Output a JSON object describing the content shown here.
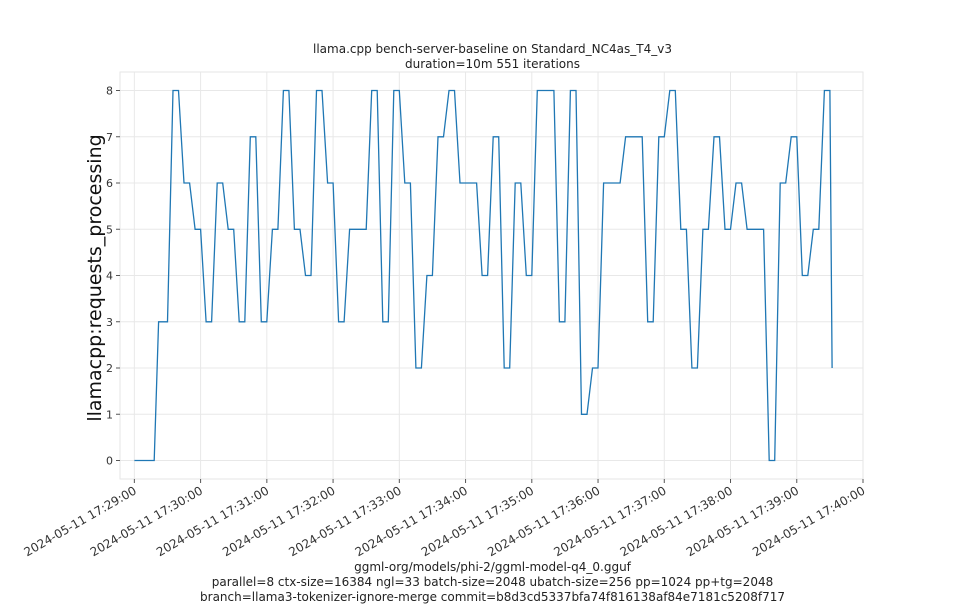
{
  "chart_data": {
    "type": "line",
    "title": "llama.cpp bench-server-baseline on Standard_NC4as_T4_v3",
    "subtitle": "duration=10m 551 iterations",
    "ylabel": "llamacpp:requests_processing",
    "xlabel_lines": [
      "ggml-org/models/phi-2/ggml-model-q4_0.gguf",
      "parallel=8 ctx-size=16384 ngl=33 batch-size=2048 ubatch-size=256 pp=1024 pp+tg=2048",
      "branch=llama3-tokenizer-ignore-merge commit=b8d3cd5337bfa74f816138af84e7181c5208f717"
    ],
    "ylim": [
      -0.4,
      8.4
    ],
    "yticks": [
      0,
      1,
      2,
      3,
      4,
      5,
      6,
      7,
      8
    ],
    "xlim": [
      "2024-05-11 17:28:47",
      "2024-05-11 17:40:00"
    ],
    "xticks": [
      "2024-05-11 17:29:00",
      "2024-05-11 17:30:00",
      "2024-05-11 17:31:00",
      "2024-05-11 17:32:00",
      "2024-05-11 17:33:00",
      "2024-05-11 17:34:00",
      "2024-05-11 17:35:00",
      "2024-05-11 17:36:00",
      "2024-05-11 17:37:00",
      "2024-05-11 17:38:00",
      "2024-05-11 17:39:00",
      "2024-05-11 17:40:00"
    ],
    "grid": true,
    "line_color": "#1f77b4",
    "series": [
      {
        "x": [
          "2024-05-11 17:29:00",
          "2024-05-11 17:29:18",
          "2024-05-11 17:29:22",
          "2024-05-11 17:29:30",
          "2024-05-11 17:29:35",
          "2024-05-11 17:29:40",
          "2024-05-11 17:29:45",
          "2024-05-11 17:29:50",
          "2024-05-11 17:29:55",
          "2024-05-11 17:30:00",
          "2024-05-11 17:30:05",
          "2024-05-11 17:30:10",
          "2024-05-11 17:30:15",
          "2024-05-11 17:30:20",
          "2024-05-11 17:30:25",
          "2024-05-11 17:30:30",
          "2024-05-11 17:30:35",
          "2024-05-11 17:30:40",
          "2024-05-11 17:30:45",
          "2024-05-11 17:30:50",
          "2024-05-11 17:30:55",
          "2024-05-11 17:31:00",
          "2024-05-11 17:31:05",
          "2024-05-11 17:31:10",
          "2024-05-11 17:31:15",
          "2024-05-11 17:31:20",
          "2024-05-11 17:31:25",
          "2024-05-11 17:31:30",
          "2024-05-11 17:31:35",
          "2024-05-11 17:31:40",
          "2024-05-11 17:31:45",
          "2024-05-11 17:31:50",
          "2024-05-11 17:31:55",
          "2024-05-11 17:32:00",
          "2024-05-11 17:32:05",
          "2024-05-11 17:32:10",
          "2024-05-11 17:32:15",
          "2024-05-11 17:32:20",
          "2024-05-11 17:32:25",
          "2024-05-11 17:32:30",
          "2024-05-11 17:32:35",
          "2024-05-11 17:32:40",
          "2024-05-11 17:32:45",
          "2024-05-11 17:32:50",
          "2024-05-11 17:32:55",
          "2024-05-11 17:33:00",
          "2024-05-11 17:33:05",
          "2024-05-11 17:33:10",
          "2024-05-11 17:33:15",
          "2024-05-11 17:33:20",
          "2024-05-11 17:33:25",
          "2024-05-11 17:33:30",
          "2024-05-11 17:33:35",
          "2024-05-11 17:33:40",
          "2024-05-11 17:33:45",
          "2024-05-11 17:33:50",
          "2024-05-11 17:33:55",
          "2024-05-11 17:34:00",
          "2024-05-11 17:34:05",
          "2024-05-11 17:34:10",
          "2024-05-11 17:34:15",
          "2024-05-11 17:34:20",
          "2024-05-11 17:34:25",
          "2024-05-11 17:34:30",
          "2024-05-11 17:34:35",
          "2024-05-11 17:34:40",
          "2024-05-11 17:34:45",
          "2024-05-11 17:34:50",
          "2024-05-11 17:34:55",
          "2024-05-11 17:35:00",
          "2024-05-11 17:35:05",
          "2024-05-11 17:35:10",
          "2024-05-11 17:35:15",
          "2024-05-11 17:35:20",
          "2024-05-11 17:35:25",
          "2024-05-11 17:35:30",
          "2024-05-11 17:35:35",
          "2024-05-11 17:35:40",
          "2024-05-11 17:35:45",
          "2024-05-11 17:35:50",
          "2024-05-11 17:35:55",
          "2024-05-11 17:36:00",
          "2024-05-11 17:36:05",
          "2024-05-11 17:36:10",
          "2024-05-11 17:36:15",
          "2024-05-11 17:36:20",
          "2024-05-11 17:36:25",
          "2024-05-11 17:36:30",
          "2024-05-11 17:36:35",
          "2024-05-11 17:36:40",
          "2024-05-11 17:36:45",
          "2024-05-11 17:36:50",
          "2024-05-11 17:36:55",
          "2024-05-11 17:37:00",
          "2024-05-11 17:37:05",
          "2024-05-11 17:37:10",
          "2024-05-11 17:37:15",
          "2024-05-11 17:37:20",
          "2024-05-11 17:37:25",
          "2024-05-11 17:37:30",
          "2024-05-11 17:37:35",
          "2024-05-11 17:37:40",
          "2024-05-11 17:37:45",
          "2024-05-11 17:37:50",
          "2024-05-11 17:37:55",
          "2024-05-11 17:38:00",
          "2024-05-11 17:38:05",
          "2024-05-11 17:38:10",
          "2024-05-11 17:38:15",
          "2024-05-11 17:38:20",
          "2024-05-11 17:38:25",
          "2024-05-11 17:38:30",
          "2024-05-11 17:38:35",
          "2024-05-11 17:38:40",
          "2024-05-11 17:38:45",
          "2024-05-11 17:38:50",
          "2024-05-11 17:38:55",
          "2024-05-11 17:39:00",
          "2024-05-11 17:39:05",
          "2024-05-11 17:39:10",
          "2024-05-11 17:39:15",
          "2024-05-11 17:39:20",
          "2024-05-11 17:39:25",
          "2024-05-11 17:39:30",
          "2024-05-11 17:39:32"
        ],
        "values": [
          0,
          0,
          3,
          3,
          8,
          8,
          6,
          6,
          5,
          5,
          3,
          3,
          6,
          6,
          5,
          5,
          3,
          3,
          7,
          7,
          3,
          3,
          5,
          5,
          8,
          8,
          5,
          5,
          4,
          4,
          8,
          8,
          6,
          6,
          3,
          3,
          5,
          5,
          5,
          5,
          8,
          8,
          3,
          3,
          8,
          8,
          6,
          6,
          2,
          2,
          4,
          4,
          7,
          7,
          8,
          8,
          6,
          6,
          6,
          6,
          4,
          4,
          7,
          7,
          2,
          2,
          6,
          6,
          4,
          4,
          8,
          8,
          8,
          8,
          3,
          3,
          8,
          8,
          1,
          1,
          2,
          2,
          6,
          6,
          6,
          6,
          7,
          7,
          7,
          7,
          3,
          3,
          7,
          7,
          8,
          8,
          5,
          5,
          2,
          2,
          5,
          5,
          7,
          7,
          5,
          5,
          6,
          6,
          5,
          5,
          5,
          5,
          0,
          0,
          6,
          6,
          7,
          7,
          4,
          4,
          5,
          5,
          8,
          8,
          2
        ]
      }
    ]
  }
}
